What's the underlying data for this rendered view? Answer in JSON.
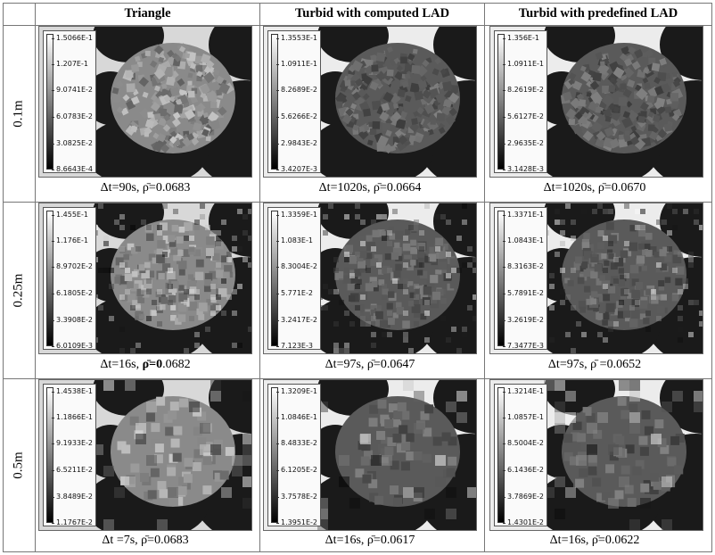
{
  "headers": [
    "Triangle",
    "Turbid with computed LAD",
    "Turbid with predefined LAD"
  ],
  "rows": [
    {
      "label": "0.1m",
      "cells": [
        {
          "ticks": [
            "1.5066E-1",
            "1.207E-1",
            "9.0741E-2",
            "6.0783E-2",
            "3.0825E-2",
            "8.6643E-4"
          ],
          "dt": "Δt=90s, ",
          "rho_sym": "ρ̄",
          "rho_eq": "=",
          "rho_val": "0.0683"
        },
        {
          "ticks": [
            "1.3553E-1",
            "1.0911E-1",
            "8.2689E-2",
            "5.6266E-2",
            "2.9843E-2",
            "3.4207E-3"
          ],
          "dt": "Δt=1020s, ",
          "rho_sym": "ρ̄",
          "rho_eq": "=",
          "rho_val": "0.0664"
        },
        {
          "ticks": [
            "1.356E-1",
            "1.0911E-1",
            "8.2619E-2",
            "5.6127E-2",
            "2.9635E-2",
            "3.1428E-3"
          ],
          "dt": "Δt=1020s, ",
          "rho_sym": "ρ̄",
          "rho_eq": "=",
          "rho_val": "0.0670"
        }
      ]
    },
    {
      "label": "0.25m",
      "cells": [
        {
          "ticks": [
            "1.455E-1",
            "1.176E-1",
            "8.9702E-2",
            "6.1805E-2",
            "3.3908E-2",
            "6.0109E-3"
          ],
          "dt": "Δt=16s, ",
          "rho_sym": "ρ̄",
          "rho_eq": "=0",
          "rho_val": ".0682"
        },
        {
          "ticks": [
            "1.3359E-1",
            "1.083E-1",
            "8.3004E-2",
            "5.771E-2",
            "3.2417E-2",
            "7.123E-3"
          ],
          "dt": "Δt=97s, ",
          "rho_sym": "ρ̄",
          "rho_eq": "=",
          "rho_val": "0.0647"
        },
        {
          "ticks": [
            "1.3371E-1",
            "1.0843E-1",
            "8.3163E-2",
            "5.7891E-2",
            "3.2619E-2",
            "7.3477E-3"
          ],
          "dt": "Δt=97s, ",
          "rho_sym": "ρ̄",
          "rho_eq": " =",
          "rho_val": "0.0652"
        }
      ]
    },
    {
      "label": "0.5m",
      "cells": [
        {
          "ticks": [
            "1.4538E-1",
            "1.1866E-1",
            "9.1933E-2",
            "6.5211E-2",
            "3.8489E-2",
            "1.1767E-2"
          ],
          "dt": "Δt =7s, ",
          "rho_sym": "ρ̄",
          "rho_eq": "=",
          "rho_val": "0.0683"
        },
        {
          "ticks": [
            "1.3209E-1",
            "1.0846E-1",
            "8.4833E-2",
            "6.1205E-2",
            "3.7578E-2",
            "1.3951E-2"
          ],
          "dt": "Δt=16s, ",
          "rho_sym": "ρ̄",
          "rho_eq": "=",
          "rho_val": "0.0617"
        },
        {
          "ticks": [
            "1.3214E-1",
            "1.0857E-1",
            "8.5004E-2",
            "6.1436E-2",
            "3.7869E-2",
            "1.4301E-2"
          ],
          "dt": "Δt=16s, ",
          "rho_sym": "ρ̄",
          "rho_eq": "=",
          "rho_val": "0.0622"
        }
      ]
    }
  ]
}
